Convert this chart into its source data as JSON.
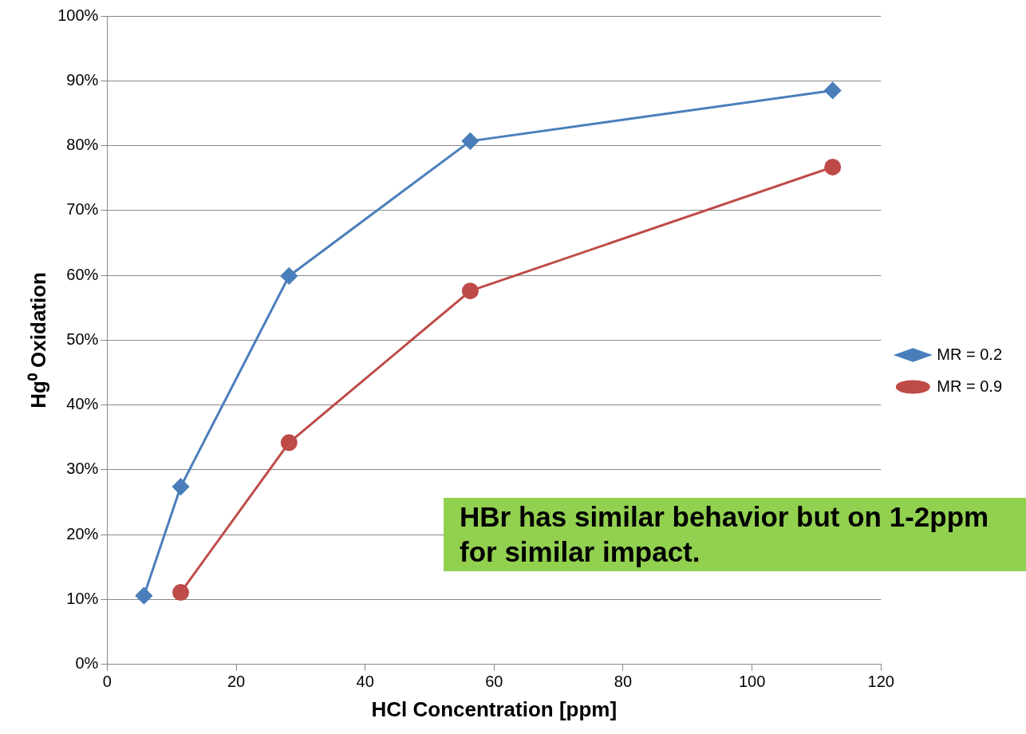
{
  "chart_data": {
    "type": "line",
    "xlabel": "HCl Concentration [ppm]",
    "ylabel": "Hg⁰ Oxidation",
    "xlim": [
      0,
      120
    ],
    "xticks": [
      0,
      20,
      40,
      60,
      80,
      100,
      120
    ],
    "ylim": [
      0,
      100
    ],
    "yticks": [
      {
        "value": 0,
        "label": "0%"
      },
      {
        "value": 10,
        "label": "10%"
      },
      {
        "value": 20,
        "label": "20%"
      },
      {
        "value": 30,
        "label": "30%"
      },
      {
        "value": 40,
        "label": "40%"
      },
      {
        "value": 50,
        "label": "50%"
      },
      {
        "value": 60,
        "label": "60%"
      },
      {
        "value": 70,
        "label": "70%"
      },
      {
        "value": 80,
        "label": "80%"
      },
      {
        "value": 90,
        "label": "90%"
      },
      {
        "value": 100,
        "label": "100%"
      }
    ],
    "grid": "y",
    "legend": "right",
    "series": [
      {
        "name": "MR = 0.2",
        "color": "#4a7ebb",
        "marker": "diamond",
        "x": [
          5.7,
          11.4,
          28.2,
          56.3,
          112.5
        ],
        "values": [
          10.6,
          27.4,
          59.9,
          80.7,
          88.5
        ]
      },
      {
        "name": "MR = 0.9",
        "color": "#be4b48",
        "marker": "circle",
        "x": [
          11.4,
          28.2,
          56.3,
          112.5
        ],
        "values": [
          11.1,
          34.2,
          57.6,
          76.7
        ]
      }
    ],
    "annotations": [
      "HBr has similar behavior but on 1-2ppm for similar impact."
    ]
  }
}
